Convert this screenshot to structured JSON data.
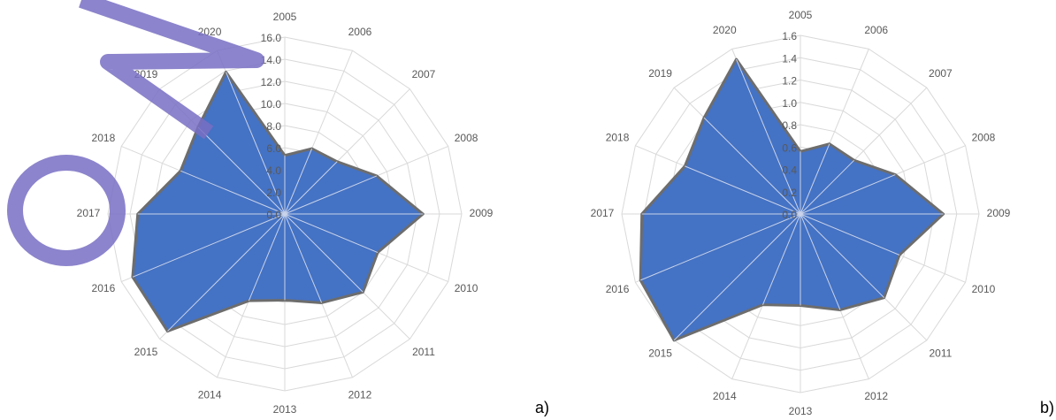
{
  "chart_data": [
    {
      "type": "radar",
      "label": "a)",
      "categories": [
        "2005",
        "2006",
        "2007",
        "2008",
        "2009",
        "2010",
        "2011",
        "2012",
        "2013",
        "2014",
        "2015",
        "2016",
        "2017",
        "2018",
        "2019",
        "2020"
      ],
      "values": [
        5.3,
        6.4,
        6.7,
        9.0,
        12.5,
        9.1,
        10.0,
        8.7,
        7.8,
        8.5,
        15.0,
        14.9,
        13.3,
        10.2,
        11.1,
        13.9
      ],
      "color": "#4472c4",
      "ylim": [
        0,
        16
      ],
      "yticks": [
        {
          "value": 0,
          "label": "0.0"
        },
        {
          "value": 2,
          "label": "2.0"
        },
        {
          "value": 4,
          "label": "4.0"
        },
        {
          "value": 6,
          "label": "6.0"
        },
        {
          "value": 8,
          "label": "8.0"
        },
        {
          "value": 10,
          "label": "10.0"
        },
        {
          "value": 12,
          "label": "12.0"
        },
        {
          "value": 14,
          "label": "14.0"
        },
        {
          "value": 16,
          "label": "16.0"
        }
      ],
      "grid": true
    },
    {
      "type": "radar",
      "label": "b)",
      "categories": [
        "2005",
        "2006",
        "2007",
        "2008",
        "2009",
        "2010",
        "2011",
        "2012",
        "2013",
        "2014",
        "2015",
        "2016",
        "2017",
        "2018",
        "2019",
        "2020"
      ],
      "values": [
        0.56,
        0.68,
        0.68,
        0.92,
        1.28,
        0.96,
        1.06,
        0.93,
        0.82,
        0.88,
        1.6,
        1.55,
        1.42,
        1.12,
        1.22,
        1.5
      ],
      "color": "#4472c4",
      "ylim": [
        0,
        1.6
      ],
      "yticks": [
        {
          "value": 0,
          "label": "0.0"
        },
        0.2,
        0.4,
        0.6,
        0.8,
        {
          "value": 1,
          "label": "1.0"
        },
        1.2,
        1.4,
        1.6
      ],
      "grid": true
    }
  ]
}
